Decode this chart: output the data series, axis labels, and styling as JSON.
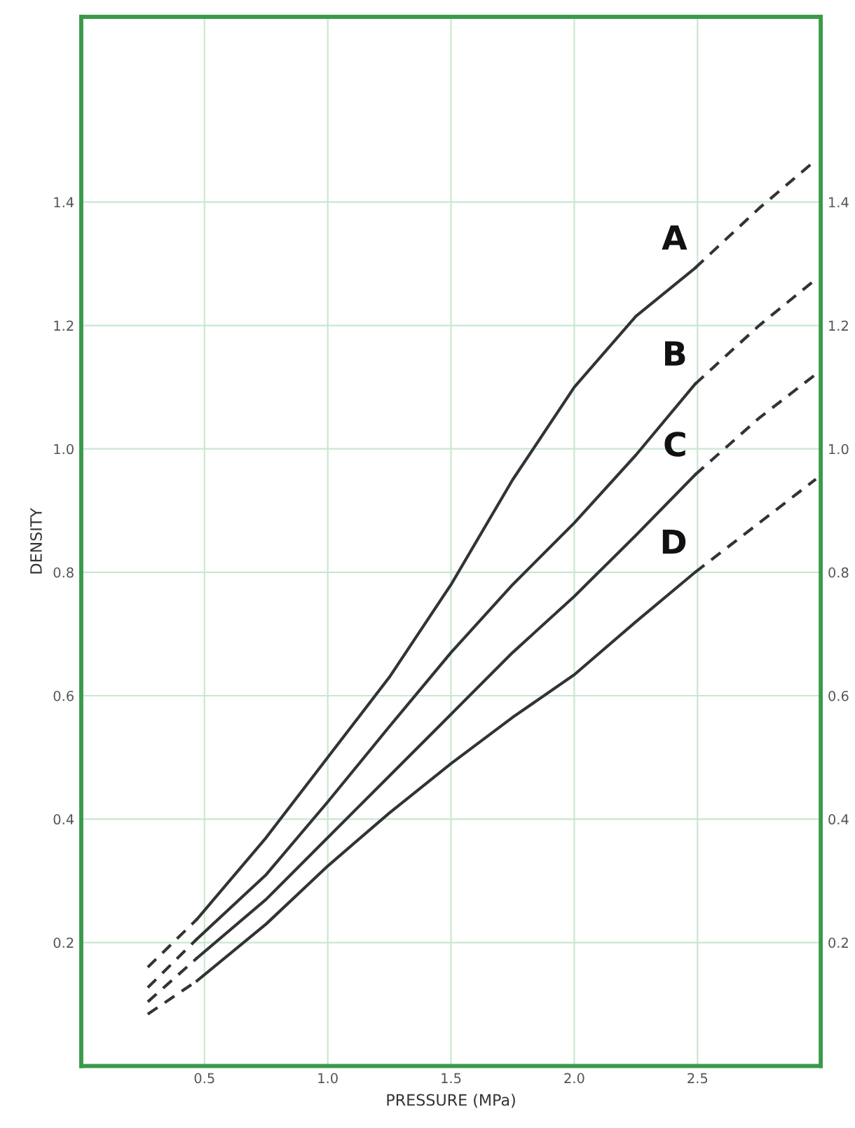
{
  "chart_data": {
    "type": "line",
    "xlabel": "PRESSURE (MPa)",
    "ylabel": "DENSITY",
    "xlim": [
      0,
      3.0
    ],
    "xticks": [
      0.5,
      {
        "value": 1,
        "label": "1.0"
      },
      1.5,
      {
        "value": 2,
        "label": "2.0"
      },
      2.5
    ],
    "ylim": [
      0,
      1.7
    ],
    "yticks": [
      0.2,
      0.4,
      0.6,
      0.8,
      {
        "value": 1,
        "label": "1.0"
      },
      1.2,
      1.4
    ],
    "y2lim": [
      0,
      1.7
    ],
    "y2ticks": [
      0.2,
      0.4,
      0.6,
      0.8,
      {
        "value": 1,
        "label": "1.0"
      },
      1.2,
      1.4
    ],
    "grid": true,
    "legend": false,
    "marker": "none",
    "series": [
      {
        "name": "A",
        "color": "#333333",
        "line_style": "solid",
        "x": [
          0.47,
          0.75,
          1.0,
          1.25,
          1.5,
          1.75,
          2.0,
          2.25,
          2.49
        ],
        "values": [
          0.238,
          0.37,
          0.5,
          0.63,
          0.78,
          0.95,
          1.1,
          1.215,
          1.293
        ]
      },
      {
        "color": "#333333",
        "line_style": "dashed",
        "x": [
          0.27,
          0.47
        ],
        "values": [
          0.16,
          0.238
        ]
      },
      {
        "color": "#333333",
        "line_style": "dashed",
        "x": [
          2.49,
          2.75,
          2.98
        ],
        "values": [
          1.293,
          1.39,
          1.468
        ]
      },
      {
        "name": "B",
        "color": "#333333",
        "line_style": "solid",
        "x": [
          0.47,
          0.75,
          1.0,
          1.25,
          1.5,
          1.75,
          2.0,
          2.25,
          2.49
        ],
        "values": [
          0.206,
          0.31,
          0.428,
          0.55,
          0.67,
          0.78,
          0.88,
          0.99,
          1.105
        ]
      },
      {
        "color": "#333333",
        "line_style": "dashed",
        "x": [
          0.27,
          0.47
        ],
        "values": [
          0.127,
          0.206
        ]
      },
      {
        "color": "#333333",
        "line_style": "dashed",
        "x": [
          2.49,
          2.75,
          2.98
        ],
        "values": [
          1.105,
          1.2,
          1.275
        ]
      },
      {
        "name": "C",
        "color": "#333333",
        "line_style": "solid",
        "x": [
          0.47,
          0.75,
          1.0,
          1.25,
          1.5,
          1.75,
          2.0,
          2.25,
          2.49
        ],
        "values": [
          0.175,
          0.27,
          0.37,
          0.47,
          0.57,
          0.67,
          0.761,
          0.86,
          0.958
        ]
      },
      {
        "color": "#333333",
        "line_style": "dashed",
        "x": [
          0.27,
          0.47
        ],
        "values": [
          0.104,
          0.175
        ]
      },
      {
        "color": "#333333",
        "line_style": "dashed",
        "x": [
          2.49,
          2.75,
          2.98
        ],
        "values": [
          0.958,
          1.05,
          1.121
        ]
      },
      {
        "name": "D",
        "color": "#333333",
        "line_style": "solid",
        "x": [
          0.47,
          0.75,
          1.0,
          1.25,
          1.5,
          1.75,
          2.0,
          2.25,
          2.49
        ],
        "values": [
          0.138,
          0.23,
          0.324,
          0.41,
          0.49,
          0.565,
          0.634,
          0.72,
          0.8
        ]
      },
      {
        "color": "#333333",
        "line_style": "dashed",
        "x": [
          0.27,
          0.47
        ],
        "values": [
          0.084,
          0.138
        ]
      },
      {
        "color": "#333333",
        "line_style": "dashed",
        "x": [
          2.49,
          2.75,
          2.98
        ],
        "values": [
          0.8,
          0.88,
          0.951
        ]
      }
    ]
  }
}
